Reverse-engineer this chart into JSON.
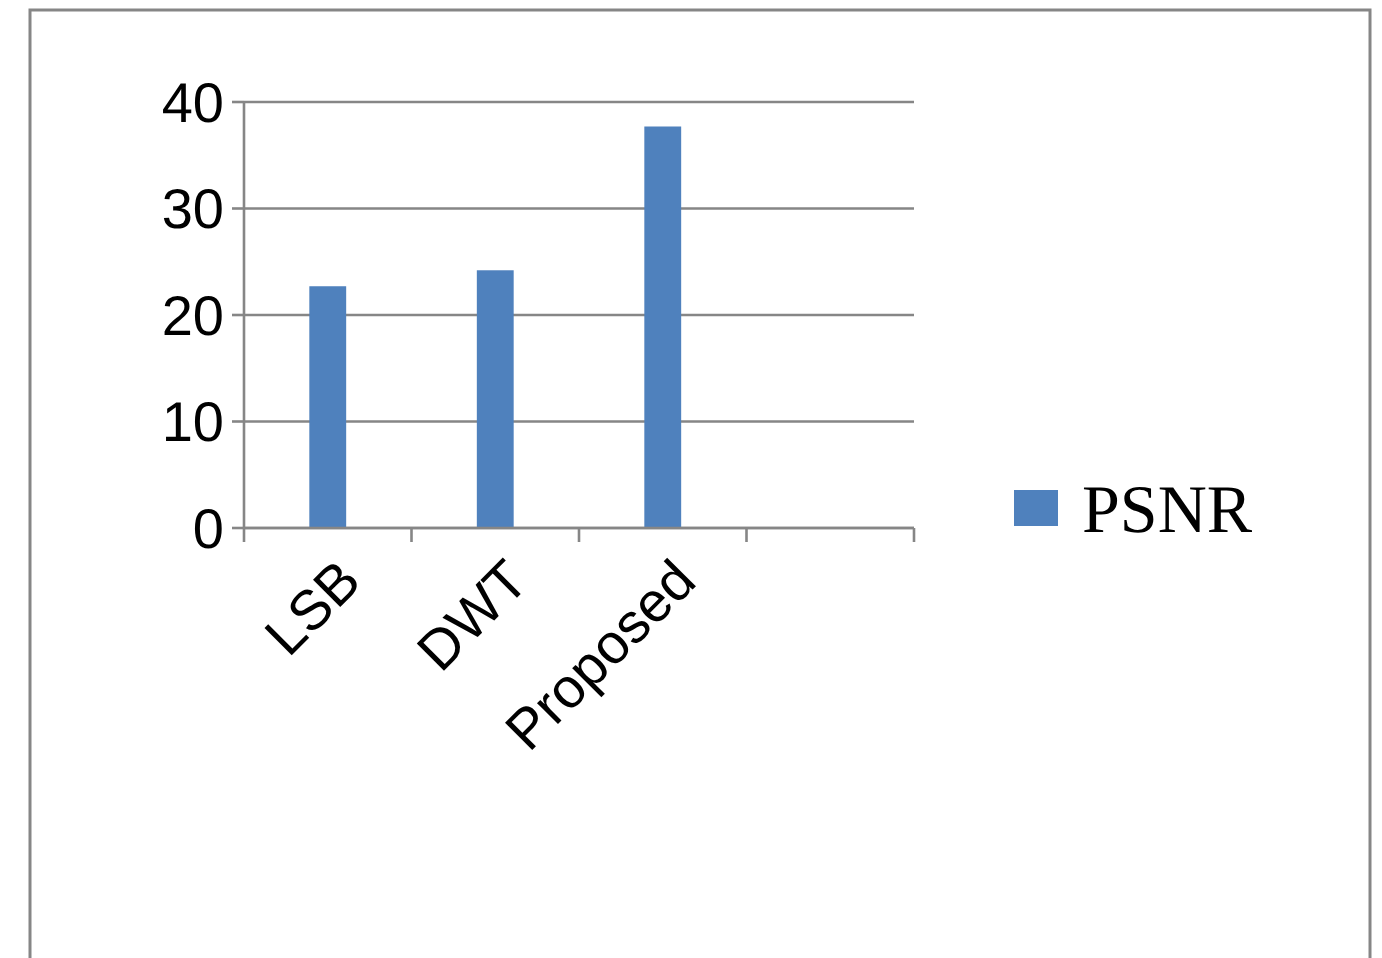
{
  "chart_data": {
    "type": "bar",
    "categories": [
      "LSB",
      "DWT",
      "Proposed",
      null
    ],
    "series": [
      {
        "name": "PSNR",
        "color": "#4f81bd",
        "values": [
          22.7,
          24.2,
          37.7,
          null
        ]
      }
    ],
    "ylim": [
      0,
      40
    ],
    "yticks": [
      0,
      10,
      20,
      30,
      40
    ],
    "grid": "y",
    "legend": "right"
  }
}
